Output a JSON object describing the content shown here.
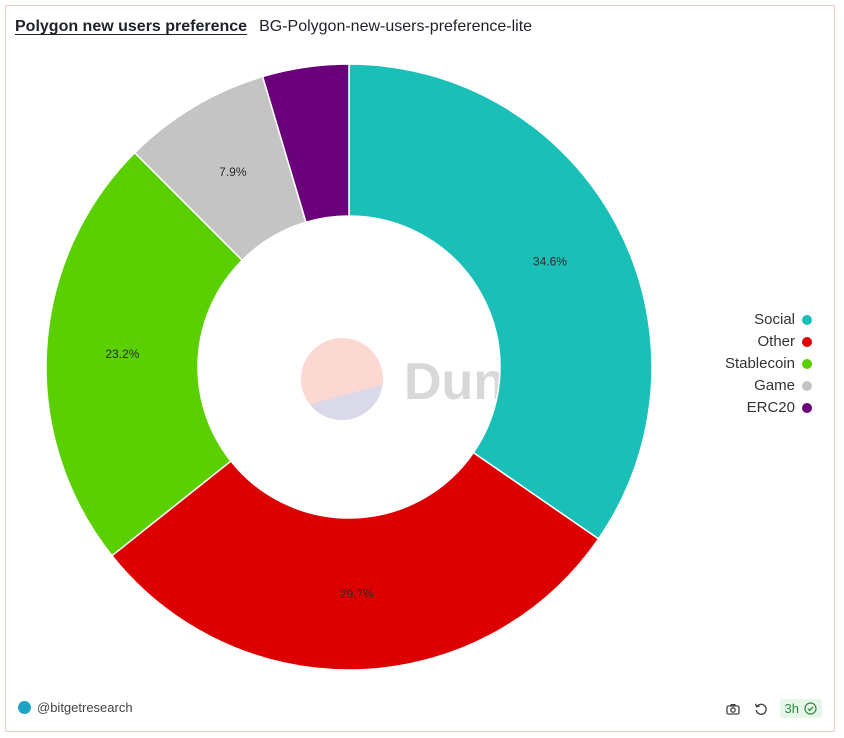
{
  "header": {
    "title": "Polygon new users preference",
    "subtitle": "BG-Polygon-new-users-preference-lite"
  },
  "watermark": {
    "text": "Dune"
  },
  "footer": {
    "author": "@bitgetresearch",
    "refresh_badge": "3h"
  },
  "icons": {
    "camera": "camera-icon",
    "refresh": "refresh-icon",
    "check": "check-circle-icon",
    "avatar": "avatar-icon"
  },
  "colors": {
    "Social": "#1abfb8",
    "Other": "#dd0000",
    "Stablecoin": "#5bd000",
    "Game": "#c4c4c4",
    "ERC20": "#6a0079"
  },
  "chart_data": {
    "type": "pie",
    "donut": true,
    "categories": [
      "Social",
      "Other",
      "Stablecoin",
      "Game",
      "ERC20"
    ],
    "values": [
      34.6,
      29.7,
      23.2,
      7.9,
      4.6
    ],
    "data_labels": [
      "34.6%",
      "29.7%",
      "23.2%",
      "7.9%",
      ""
    ],
    "legend_position": "right"
  }
}
